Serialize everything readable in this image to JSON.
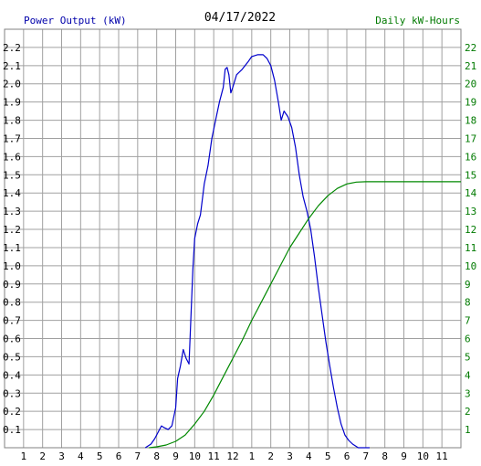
{
  "chart_data": {
    "type": "line",
    "title": "04/17/2022",
    "left_axis_label": "Power Output (kW)",
    "right_axis_label": "Daily kW-Hours",
    "x_tick_labels": [
      "1",
      "2",
      "3",
      "4",
      "5",
      "6",
      "7",
      "8",
      "9",
      "10",
      "11",
      "12",
      "1",
      "2",
      "3",
      "4",
      "5",
      "6",
      "7",
      "8",
      "9",
      "10",
      "11"
    ],
    "y_left_ticks": [
      "0.1",
      "0.2",
      "0.3",
      "0.4",
      "0.5",
      "0.6",
      "0.7",
      "0.8",
      "0.9",
      "1.0",
      "1.1",
      "1.2",
      "1.3",
      "1.4",
      "1.5",
      "1.6",
      "1.7",
      "1.8",
      "1.9",
      "2.0",
      "2.1",
      "2.2"
    ],
    "y_right_ticks": [
      "1",
      "2",
      "3",
      "4",
      "5",
      "6",
      "7",
      "8",
      "9",
      "10",
      "11",
      "12",
      "13",
      "14",
      "15",
      "16",
      "17",
      "18",
      "19",
      "20",
      "21",
      "22"
    ],
    "x_range_hours": [
      0,
      24
    ],
    "y_left_range": [
      0,
      2.3
    ],
    "y_right_range": [
      0,
      23
    ],
    "grid": true,
    "colors": {
      "power": "#0000cc",
      "energy": "#008800",
      "grid": "#a0a0a0",
      "axis_label_left": "#0000aa",
      "axis_label_right": "#007a00"
    },
    "series": [
      {
        "axis": "left",
        "color": "#0000cc",
        "points": [
          [
            7.4,
            0.0
          ],
          [
            7.7,
            0.02
          ],
          [
            7.9,
            0.05
          ],
          [
            8.1,
            0.09
          ],
          [
            8.25,
            0.12
          ],
          [
            8.4,
            0.11
          ],
          [
            8.6,
            0.1
          ],
          [
            8.8,
            0.12
          ],
          [
            9.0,
            0.22
          ],
          [
            9.1,
            0.38
          ],
          [
            9.25,
            0.45
          ],
          [
            9.4,
            0.54
          ],
          [
            9.55,
            0.49
          ],
          [
            9.7,
            0.46
          ],
          [
            9.8,
            0.72
          ],
          [
            9.9,
            0.98
          ],
          [
            10.0,
            1.15
          ],
          [
            10.15,
            1.23
          ],
          [
            10.3,
            1.28
          ],
          [
            10.5,
            1.45
          ],
          [
            10.7,
            1.55
          ],
          [
            10.9,
            1.7
          ],
          [
            11.1,
            1.8
          ],
          [
            11.3,
            1.9
          ],
          [
            11.5,
            1.98
          ],
          [
            11.6,
            2.08
          ],
          [
            11.7,
            2.09
          ],
          [
            11.8,
            2.05
          ],
          [
            11.9,
            1.95
          ],
          [
            12.0,
            1.98
          ],
          [
            12.2,
            2.05
          ],
          [
            12.5,
            2.08
          ],
          [
            12.8,
            2.12
          ],
          [
            13.0,
            2.15
          ],
          [
            13.3,
            2.16
          ],
          [
            13.6,
            2.16
          ],
          [
            13.8,
            2.14
          ],
          [
            14.0,
            2.1
          ],
          [
            14.2,
            2.02
          ],
          [
            14.4,
            1.9
          ],
          [
            14.55,
            1.8
          ],
          [
            14.7,
            1.85
          ],
          [
            14.9,
            1.82
          ],
          [
            15.1,
            1.76
          ],
          [
            15.3,
            1.65
          ],
          [
            15.5,
            1.5
          ],
          [
            15.7,
            1.38
          ],
          [
            15.9,
            1.3
          ],
          [
            16.1,
            1.2
          ],
          [
            16.3,
            1.05
          ],
          [
            16.5,
            0.88
          ],
          [
            16.7,
            0.73
          ],
          [
            16.9,
            0.58
          ],
          [
            17.1,
            0.45
          ],
          [
            17.3,
            0.33
          ],
          [
            17.5,
            0.22
          ],
          [
            17.7,
            0.13
          ],
          [
            17.9,
            0.07
          ],
          [
            18.1,
            0.04
          ],
          [
            18.3,
            0.02
          ],
          [
            18.6,
            0.0
          ],
          [
            19.2,
            0.0
          ]
        ]
      },
      {
        "axis": "right",
        "color": "#008800",
        "points": [
          [
            7.6,
            0.0
          ],
          [
            8.0,
            0.05
          ],
          [
            8.5,
            0.15
          ],
          [
            9.0,
            0.35
          ],
          [
            9.5,
            0.7
          ],
          [
            10.0,
            1.3
          ],
          [
            10.5,
            2.0
          ],
          [
            11.0,
            2.9
          ],
          [
            11.5,
            3.9
          ],
          [
            12.0,
            4.9
          ],
          [
            12.5,
            5.9
          ],
          [
            13.0,
            7.0
          ],
          [
            13.5,
            8.0
          ],
          [
            14.0,
            9.0
          ],
          [
            14.5,
            10.0
          ],
          [
            15.0,
            11.0
          ],
          [
            15.5,
            11.8
          ],
          [
            16.0,
            12.6
          ],
          [
            16.5,
            13.3
          ],
          [
            17.0,
            13.85
          ],
          [
            17.5,
            14.25
          ],
          [
            18.0,
            14.5
          ],
          [
            18.5,
            14.6
          ],
          [
            19.0,
            14.62
          ],
          [
            24.0,
            14.62
          ]
        ]
      }
    ]
  }
}
